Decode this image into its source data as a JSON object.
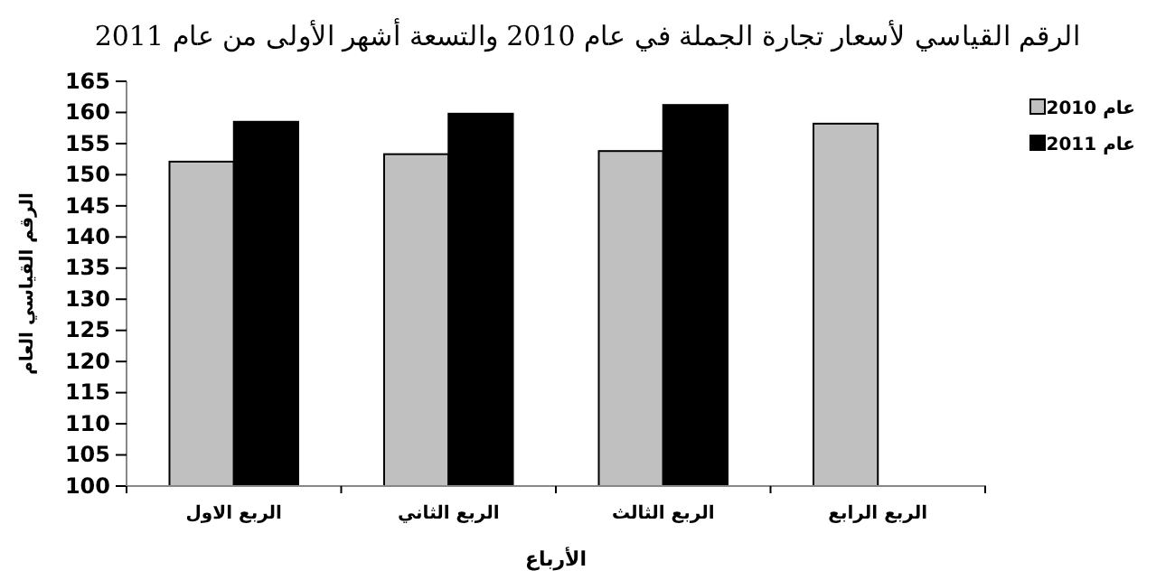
{
  "chart_data": {
    "type": "bar",
    "title": "الرقم القياسي لأسعار تجارة الجملة في عام 2010 والتسعة أشهر الأولى من عام 2011",
    "xlabel": "الأرباع",
    "ylabel": "الرقم القياسي العام",
    "categories": [
      "الربع الاول",
      "الربع الثاني",
      "الربع الثالث",
      "الربع الرابع"
    ],
    "series": [
      {
        "name": "عام 2010",
        "color": "#c0c0c0",
        "values": [
          152.1,
          153.3,
          153.8,
          158.2
        ]
      },
      {
        "name": "عام 2011",
        "color": "#000000",
        "values": [
          158.5,
          159.8,
          161.2,
          null
        ]
      }
    ],
    "ylim": [
      100,
      165
    ],
    "yticks": [
      100,
      105,
      110,
      115,
      120,
      125,
      130,
      135,
      140,
      145,
      150,
      155,
      160,
      165
    ],
    "grid": false,
    "legend": "top right"
  }
}
